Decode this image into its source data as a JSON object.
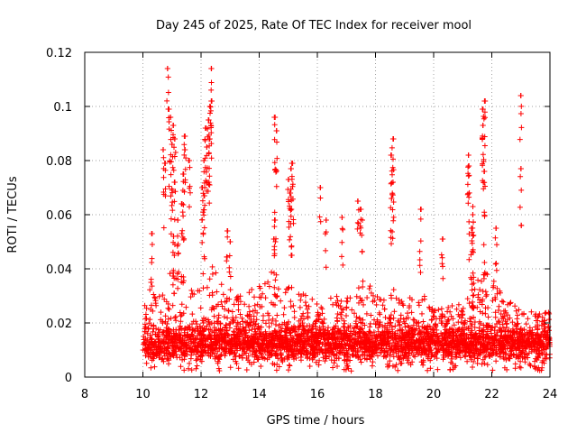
{
  "chart_data": {
    "type": "scatter",
    "title": "Day 245 of 2025, Rate Of TEC Index for receiver mool",
    "xlabel": "GPS time / hours",
    "ylabel": "ROTI / TECUs",
    "xlim": [
      8,
      24
    ],
    "ylim": [
      0,
      0.12
    ],
    "x_ticks": [
      8,
      10,
      12,
      14,
      16,
      18,
      20,
      22,
      24
    ],
    "x_tick_labels": [
      "8",
      "10",
      "12",
      "14",
      "16",
      "18",
      "20",
      "22",
      "24"
    ],
    "y_ticks": [
      0,
      0.02,
      0.04,
      0.06,
      0.08,
      0.1,
      0.12
    ],
    "y_tick_labels": [
      "0",
      "0.02",
      "0.04",
      "0.06",
      "0.08",
      "0.1",
      "0.12"
    ],
    "grid": true,
    "marker": "+",
    "point_color": "#ff0000",
    "series": [
      {
        "name": "ROTI",
        "points": [
          [
            10.85,
            0.114
          ],
          [
            12.35,
            0.114
          ],
          [
            23.0,
            0.104
          ],
          [
            12.35,
            0.102
          ],
          [
            12.3,
            0.1
          ],
          [
            21.75,
            0.102
          ],
          [
            21.7,
            0.099
          ],
          [
            10.9,
            0.099
          ],
          [
            10.95,
            0.096
          ],
          [
            12.25,
            0.095
          ],
          [
            14.55,
            0.096
          ],
          [
            11.05,
            0.093
          ],
          [
            12.15,
            0.092
          ],
          [
            14.6,
            0.091
          ],
          [
            21.7,
            0.093
          ],
          [
            11.1,
            0.088
          ],
          [
            11.45,
            0.089
          ],
          [
            12.3,
            0.088
          ],
          [
            18.6,
            0.088
          ],
          [
            11.0,
            0.086
          ],
          [
            11.45,
            0.084
          ],
          [
            10.7,
            0.084
          ],
          [
            12.2,
            0.085
          ],
          [
            18.55,
            0.082
          ],
          [
            21.2,
            0.082
          ],
          [
            12.1,
            0.08
          ],
          [
            15.15,
            0.079
          ],
          [
            15.1,
            0.077
          ],
          [
            10.75,
            0.079
          ],
          [
            11.6,
            0.08
          ],
          [
            21.2,
            0.078
          ],
          [
            23.0,
            0.077
          ],
          [
            21.75,
            0.076
          ],
          [
            11.4,
            0.075
          ],
          [
            15.0,
            0.073
          ],
          [
            11.1,
            0.072
          ],
          [
            12.05,
            0.07
          ],
          [
            16.1,
            0.07
          ],
          [
            18.6,
            0.072
          ],
          [
            11.0,
            0.069
          ],
          [
            15.05,
            0.068
          ],
          [
            12.1,
            0.067
          ],
          [
            18.55,
            0.066
          ],
          [
            17.4,
            0.065
          ],
          [
            21.35,
            0.063
          ],
          [
            11.35,
            0.064
          ],
          [
            15.1,
            0.062
          ],
          [
            17.5,
            0.062
          ],
          [
            19.55,
            0.062
          ],
          [
            16.85,
            0.059
          ],
          [
            16.3,
            0.058
          ],
          [
            14.55,
            0.058
          ],
          [
            17.55,
            0.058
          ],
          [
            11.2,
            0.058
          ],
          [
            21.35,
            0.06
          ],
          [
            22.15,
            0.055
          ],
          [
            12.9,
            0.054
          ],
          [
            10.3,
            0.053
          ],
          [
            21.3,
            0.055
          ],
          [
            11.05,
            0.052
          ],
          [
            13.0,
            0.05
          ],
          [
            14.5,
            0.051
          ],
          [
            20.3,
            0.051
          ]
        ],
        "band_profile": [
          [
            10.0,
            0.028
          ],
          [
            10.2,
            0.034
          ],
          [
            10.5,
            0.03
          ],
          [
            10.8,
            0.034
          ],
          [
            11.0,
            0.042
          ],
          [
            11.3,
            0.038
          ],
          [
            11.6,
            0.036
          ],
          [
            12.0,
            0.034
          ],
          [
            12.3,
            0.044
          ],
          [
            12.7,
            0.036
          ],
          [
            13.0,
            0.032
          ],
          [
            13.3,
            0.03
          ],
          [
            13.6,
            0.032
          ],
          [
            14.0,
            0.034
          ],
          [
            14.5,
            0.04
          ],
          [
            14.9,
            0.036
          ],
          [
            15.2,
            0.034
          ],
          [
            15.5,
            0.032
          ],
          [
            16.0,
            0.028
          ],
          [
            16.5,
            0.03
          ],
          [
            17.0,
            0.03
          ],
          [
            17.4,
            0.038
          ],
          [
            17.8,
            0.034
          ],
          [
            18.2,
            0.03
          ],
          [
            18.6,
            0.034
          ],
          [
            19.0,
            0.03
          ],
          [
            19.5,
            0.034
          ],
          [
            20.0,
            0.026
          ],
          [
            20.5,
            0.026
          ],
          [
            21.0,
            0.028
          ],
          [
            21.4,
            0.034
          ],
          [
            21.8,
            0.04
          ],
          [
            22.2,
            0.034
          ],
          [
            22.6,
            0.028
          ],
          [
            23.0,
            0.026
          ],
          [
            23.5,
            0.024
          ],
          [
            24.0,
            0.024
          ]
        ],
        "band_start_hour": 10.0,
        "band_end_hour": 24.0,
        "band_floor": 0.002
      }
    ]
  }
}
